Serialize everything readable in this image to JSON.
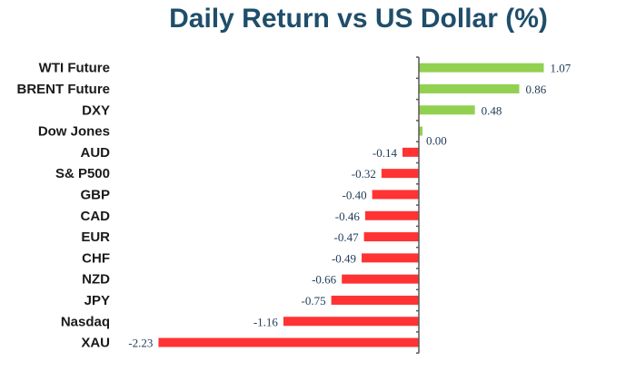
{
  "chart_data": {
    "type": "bar",
    "orientation": "horizontal",
    "title": "Daily Return vs US Dollar (%)",
    "categories": [
      "WTI Future",
      "BRENT Future",
      "DXY",
      "Dow Jones",
      "AUD",
      "S& P500",
      "GBP",
      "CAD",
      "EUR",
      "CHF",
      "NZD",
      "JPY",
      "Nasdaq",
      "XAU"
    ],
    "values": [
      1.07,
      0.86,
      0.48,
      0.0,
      -0.14,
      -0.32,
      -0.4,
      -0.46,
      -0.47,
      -0.49,
      -0.66,
      -0.75,
      -1.16,
      -2.23
    ],
    "value_labels": [
      "1.07",
      "0.86",
      "0.48",
      "0.00",
      "-0.14",
      "-0.32",
      "-0.40",
      "-0.46",
      "-0.47",
      "-0.49",
      "-0.66",
      "-0.75",
      "-1.16",
      "-2.23"
    ],
    "xlim": [
      -2.23,
      1.07
    ],
    "grid": false,
    "colors": {
      "positive": "#92d050",
      "negative": "#ff3333",
      "axis": "#595959",
      "title": "#1f4e6b",
      "value_text": "#1f3b57"
    }
  }
}
